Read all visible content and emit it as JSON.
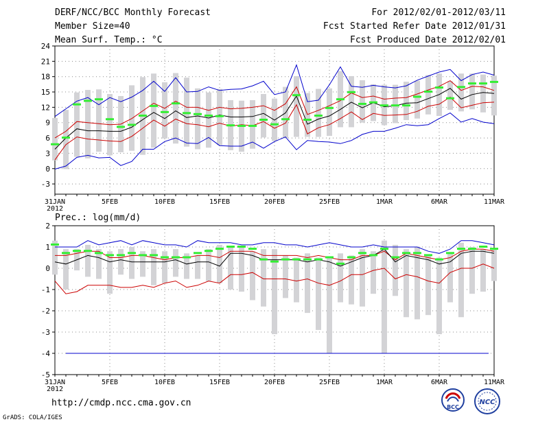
{
  "header": {
    "title": "DERF/NCC/BCC Monthly Forecast",
    "member_size": "Member Size=40",
    "variable": "Mean Surf. Temp.: °C",
    "period": "For 2012/02/01-2012/03/11",
    "started": "Fcst Started Refer Date 2012/01/31",
    "produced": "Fcst Produced Date 2012/02/01"
  },
  "footer": {
    "url": "http://cmdp.ncc.cma.gov.cn",
    "grads": "GrADS: COLA/IGES",
    "logo_bcc": "BCC",
    "logo_ncc": "NCC"
  },
  "colors": {
    "max_min": "#0000cc",
    "sd_band": "#cc0000",
    "mean": "#000000",
    "box": "#d3d3d6",
    "marker": "#33ee33",
    "ref": "#0000cc"
  },
  "chart_data": [
    {
      "type": "line",
      "title": "Mean Surf. Temp.: °C",
      "ylim": [
        -5,
        24
      ],
      "yticks": [
        -3,
        0,
        3,
        6,
        9,
        12,
        15,
        18,
        21,
        24
      ],
      "x_tick_labels": [
        "31JAN\n2012",
        "5FEB",
        "10FEB",
        "15FEB",
        "20FEB",
        "25FEB",
        "1MAR",
        "6MAR",
        "11MAR"
      ],
      "days": 41,
      "box_top": [
        9.9,
        11.5,
        14.9,
        15.4,
        15.5,
        14.6,
        14.2,
        16.3,
        17.9,
        18.6,
        16.9,
        18.7,
        17.8,
        15.7,
        14.9,
        15.6,
        13.4,
        13.3,
        13.4,
        14.6,
        13.7,
        16.0,
        18.1,
        14.8,
        15.6,
        15.7,
        19.1,
        18.1,
        17.3,
        16.5,
        16.4,
        16.4,
        17.0,
        17.2,
        18.3,
        18.6,
        17.1,
        18.6,
        18.6,
        18.4,
        18.2
      ],
      "box_bot": [
        1.6,
        -0.1,
        2.3,
        2.0,
        3.3,
        2.6,
        3.2,
        3.5,
        2.7,
        4.1,
        5.9,
        4.9,
        4.3,
        3.8,
        4.1,
        4.6,
        3.6,
        3.3,
        3.9,
        6.1,
        5.4,
        6.0,
        6.2,
        6.2,
        6.2,
        6.4,
        8.1,
        8.1,
        9.0,
        9.3,
        8.5,
        8.9,
        9.5,
        9.8,
        10.6,
        10.3,
        11.5,
        11.2,
        11.6,
        11.0,
        10.4
      ],
      "marker": [
        4.7,
        6.0,
        12.5,
        13.2,
        13.5,
        9.6,
        8.1,
        8.5,
        10.3,
        12.2,
        11.0,
        12.7,
        10.8,
        10.6,
        10.3,
        10.2,
        8.4,
        8.3,
        8.3,
        9.5,
        8.6,
        9.6,
        14.3,
        9.5,
        10.3,
        11.8,
        13.5,
        14.9,
        12.6,
        12.9,
        12.3,
        12.3,
        12.3,
        14.0,
        15.0,
        15.8,
        13.7,
        15.9,
        16.6,
        16.6,
        16.9
      ],
      "series": [
        {
          "name": "max",
          "color": "#0000cc",
          "values": [
            10.2,
            11.7,
            13.2,
            13.9,
            12.5,
            13.9,
            13.1,
            14.0,
            15.3,
            17.1,
            15.1,
            17.8,
            15.0,
            15.1,
            16.0,
            15.3,
            15.5,
            15.6,
            16.2,
            17.1,
            14.5,
            15.0,
            20.3,
            13.1,
            13.4,
            16.4,
            19.9,
            16.1,
            15.9,
            16.3,
            16.0,
            15.8,
            16.2,
            17.3,
            18.1,
            18.9,
            19.4,
            17.2,
            18.4,
            18.9,
            18.3
          ]
        },
        {
          "name": "mean+sd",
          "color": "#cc0000",
          "values": [
            6.0,
            7.3,
            9.2,
            9.0,
            8.8,
            8.6,
            8.7,
            9.8,
            11.3,
            12.8,
            11.8,
            13.2,
            12.0,
            12.0,
            11.4,
            12.0,
            11.7,
            11.8,
            12.0,
            12.3,
            11.4,
            12.7,
            16.0,
            10.6,
            11.4,
            12.3,
            13.3,
            14.8,
            13.9,
            14.2,
            13.6,
            13.8,
            13.9,
            14.6,
            15.4,
            16.1,
            17.2,
            15.3,
            16.1,
            16.0,
            15.3
          ]
        },
        {
          "name": "mean",
          "color": "#000000",
          "values": [
            3.8,
            6.0,
            7.8,
            7.4,
            7.4,
            7.3,
            7.3,
            8.1,
            9.6,
            11.0,
            9.8,
            11.3,
            10.0,
            10.3,
            9.9,
            10.5,
            10.1,
            10.1,
            10.2,
            10.8,
            9.5,
            10.9,
            14.2,
            8.7,
            9.7,
            10.3,
            11.6,
            13.0,
            11.9,
            12.9,
            12.1,
            12.3,
            12.8,
            12.9,
            13.7,
            14.5,
            15.7,
            13.6,
            14.5,
            14.9,
            14.7
          ]
        },
        {
          "name": "mean-sd",
          "color": "#cc0000",
          "values": [
            1.7,
            4.7,
            6.2,
            5.8,
            5.6,
            5.4,
            5.3,
            6.3,
            7.9,
            9.5,
            8.3,
            9.7,
            8.8,
            8.6,
            8.2,
            8.9,
            8.3,
            8.6,
            8.4,
            9.2,
            7.9,
            8.9,
            12.5,
            6.8,
            8.0,
            8.6,
            9.8,
            11.1,
            9.6,
            10.8,
            10.4,
            10.5,
            10.6,
            11.2,
            12.2,
            12.6,
            14.0,
            11.9,
            12.4,
            12.9,
            13.0
          ]
        },
        {
          "name": "min",
          "color": "#0000cc",
          "values": [
            -0.1,
            0.5,
            2.2,
            2.6,
            2.1,
            2.2,
            0.6,
            1.4,
            3.8,
            3.8,
            5.3,
            6.0,
            5.0,
            4.9,
            6.1,
            4.5,
            4.4,
            4.4,
            5.2,
            4.0,
            5.3,
            6.2,
            3.7,
            5.5,
            5.3,
            5.2,
            4.9,
            5.5,
            6.7,
            7.3,
            7.3,
            7.9,
            8.6,
            8.4,
            8.6,
            9.8,
            10.9,
            9.1,
            9.8,
            9.1,
            8.8
          ]
        }
      ]
    },
    {
      "type": "line",
      "title": "Prec.: log(mm/d)",
      "ylim": [
        -5,
        2
      ],
      "yticks": [
        -5,
        -4,
        -3,
        -2,
        -1,
        0,
        1,
        2
      ],
      "x_tick_labels": [
        "31JAN\n2012",
        "5FEB",
        "10FEB",
        "15FEB",
        "20FEB",
        "25FEB",
        "1MAR",
        "6MAR",
        "11MAR"
      ],
      "days": 41,
      "ref_line": -4,
      "box_top": [
        1.3,
        0.9,
        0.9,
        1.1,
        0.9,
        0.8,
        0.9,
        1.0,
        0.8,
        0.9,
        0.8,
        0.9,
        0.7,
        0.6,
        0.9,
        1.1,
        1.0,
        1.0,
        0.8,
        0.9,
        0.9,
        0.6,
        0.5,
        0.7,
        0.5,
        0.5,
        0.7,
        0.6,
        0.9,
        0.8,
        1.3,
        1.1,
        0.9,
        1.0,
        0.6,
        0.5,
        0.7,
        1.2,
        1.0,
        0.9,
        0.9
      ],
      "box_bot": [
        -0.3,
        -1.0,
        -0.1,
        -0.4,
        -0.5,
        -1.2,
        -0.3,
        -0.5,
        -0.4,
        -0.8,
        -0.7,
        -0.4,
        -0.5,
        -0.5,
        -0.6,
        -0.7,
        -1.0,
        -1.1,
        -1.5,
        -1.8,
        -3.1,
        -1.4,
        -1.6,
        -2.1,
        -2.9,
        -4.0,
        -1.6,
        -1.7,
        -1.8,
        -1.2,
        -4.0,
        -1.3,
        -2.3,
        -2.4,
        -2.2,
        -3.1,
        -1.6,
        -2.3,
        -1.2,
        -1.1,
        -0.6
      ],
      "marker": [
        1.1,
        0.7,
        0.8,
        0.8,
        0.7,
        0.6,
        0.6,
        0.7,
        0.6,
        0.6,
        0.5,
        0.5,
        0.5,
        0.7,
        0.8,
        0.9,
        1.0,
        1.0,
        0.9,
        0.4,
        0.3,
        0.4,
        0.4,
        0.4,
        0.4,
        0.5,
        0.2,
        0.5,
        0.7,
        0.6,
        0.9,
        0.5,
        0.7,
        0.7,
        0.6,
        0.4,
        0.7,
        0.9,
        0.9,
        1.0,
        0.9
      ],
      "series": [
        {
          "name": "max",
          "color": "#0000cc",
          "values": [
            1.0,
            1.0,
            1.0,
            1.3,
            1.1,
            1.2,
            1.3,
            1.1,
            1.3,
            1.2,
            1.1,
            1.1,
            1.0,
            1.3,
            1.2,
            1.2,
            1.2,
            1.1,
            1.1,
            1.2,
            1.2,
            1.1,
            1.1,
            1.0,
            1.1,
            1.2,
            1.1,
            1.0,
            1.0,
            1.1,
            1.0,
            1.0,
            1.0,
            1.0,
            0.8,
            0.7,
            0.9,
            1.3,
            1.3,
            1.2,
            1.1
          ]
        },
        {
          "name": "mean+sd",
          "color": "#cc0000",
          "values": [
            0.6,
            0.6,
            0.7,
            0.8,
            0.8,
            0.5,
            0.5,
            0.6,
            0.6,
            0.5,
            0.4,
            0.5,
            0.5,
            0.6,
            0.6,
            0.5,
            0.8,
            0.8,
            0.8,
            0.6,
            0.6,
            0.6,
            0.6,
            0.5,
            0.6,
            0.5,
            0.4,
            0.4,
            0.6,
            0.6,
            0.8,
            0.4,
            0.7,
            0.6,
            0.5,
            0.4,
            0.5,
            0.8,
            0.9,
            0.9,
            0.8
          ]
        },
        {
          "name": "mean",
          "color": "#000000",
          "values": [
            0.3,
            0.2,
            0.4,
            0.6,
            0.5,
            0.3,
            0.4,
            0.3,
            0.3,
            0.3,
            0.3,
            0.4,
            0.2,
            0.3,
            0.3,
            0.1,
            0.7,
            0.7,
            0.6,
            0.4,
            0.4,
            0.4,
            0.4,
            0.3,
            0.4,
            0.3,
            0.1,
            0.3,
            0.5,
            0.6,
            0.9,
            0.3,
            0.6,
            0.5,
            0.4,
            0.2,
            0.3,
            0.7,
            0.8,
            0.8,
            0.7
          ]
        },
        {
          "name": "mean-sd",
          "color": "#cc0000",
          "values": [
            -0.6,
            -1.2,
            -1.1,
            -0.8,
            -0.8,
            -0.8,
            -0.9,
            -0.9,
            -0.8,
            -0.9,
            -0.7,
            -0.6,
            -0.9,
            -0.8,
            -0.6,
            -0.7,
            -0.3,
            -0.3,
            -0.2,
            -0.5,
            -0.5,
            -0.5,
            -0.6,
            -0.5,
            -0.7,
            -0.8,
            -0.6,
            -0.3,
            -0.3,
            -0.1,
            0.0,
            -0.5,
            -0.3,
            -0.4,
            -0.6,
            -0.7,
            -0.2,
            0.0,
            0.0,
            0.2,
            0.0
          ]
        },
        {
          "name": "min",
          "color": "#0000cc",
          "values": null
        }
      ]
    }
  ]
}
